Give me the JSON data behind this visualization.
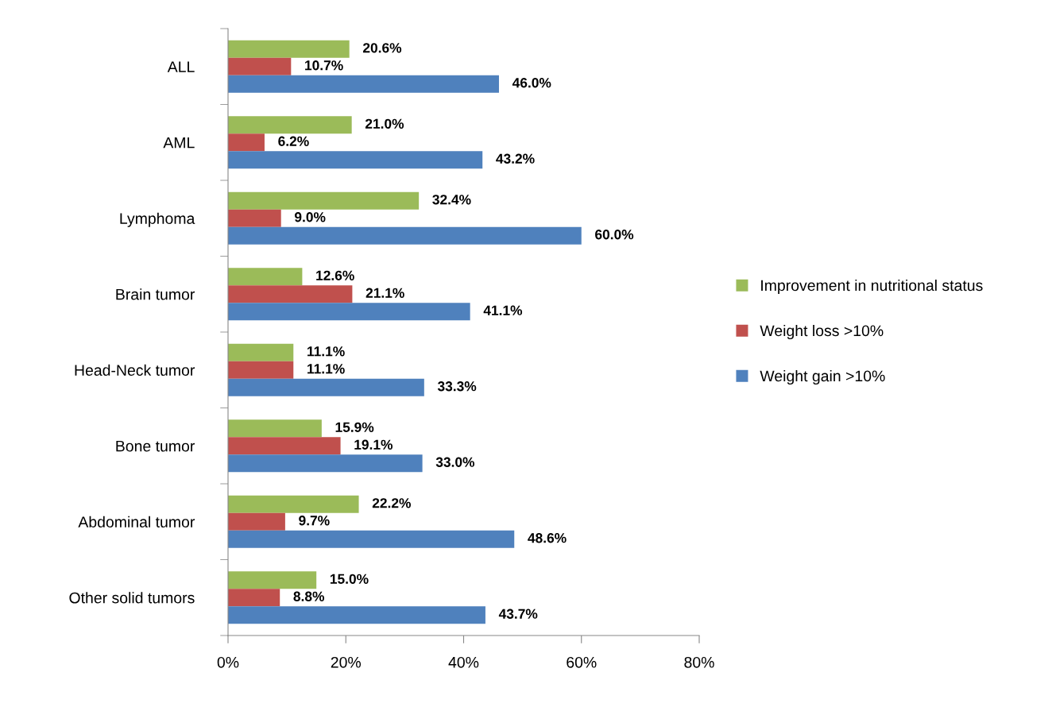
{
  "chart_data": {
    "type": "bar",
    "orientation": "horizontal",
    "categories": [
      "ALL",
      "AML",
      "Lymphoma",
      "Brain tumor",
      "Head-Neck tumor",
      "Bone tumor",
      "Abdominal tumor",
      "Other solid tumors"
    ],
    "series": [
      {
        "name": "Improvement in nutritional status",
        "color": "#9bbb59",
        "values": [
          20.6,
          21.0,
          32.4,
          12.6,
          11.1,
          15.9,
          22.2,
          15.0
        ],
        "value_labels": [
          "20.6%",
          "21.0%",
          "32.4%",
          "12.6%",
          "11.1%",
          "15.9%",
          "22.2%",
          "15.0%"
        ]
      },
      {
        "name": "Weight loss >10%",
        "color": "#c0504d",
        "values": [
          10.7,
          6.2,
          9.0,
          21.1,
          11.1,
          19.1,
          9.7,
          8.8
        ],
        "value_labels": [
          "10.7%",
          "6.2%",
          "9.0%",
          "21.1%",
          "11.1%",
          "19.1%",
          "9.7%",
          "8.8%"
        ]
      },
      {
        "name": "Weight gain >10%",
        "color": "#4f81bd",
        "values": [
          46.0,
          43.2,
          60.0,
          41.1,
          33.3,
          33.0,
          48.6,
          43.7
        ],
        "value_labels": [
          "46.0%",
          "43.2%",
          "60.0%",
          "41.1%",
          "33.3%",
          "33.0%",
          "48.6%",
          "43.7%"
        ]
      }
    ],
    "xlim": [
      0,
      80
    ],
    "xticks": [
      {
        "value": 0,
        "label": "0%"
      },
      {
        "value": 20,
        "label": "20%"
      },
      {
        "value": 40,
        "label": "40%"
      },
      {
        "value": 60,
        "label": "60%"
      },
      {
        "value": 80,
        "label": "80%"
      }
    ],
    "grid": false,
    "legend": "right"
  }
}
